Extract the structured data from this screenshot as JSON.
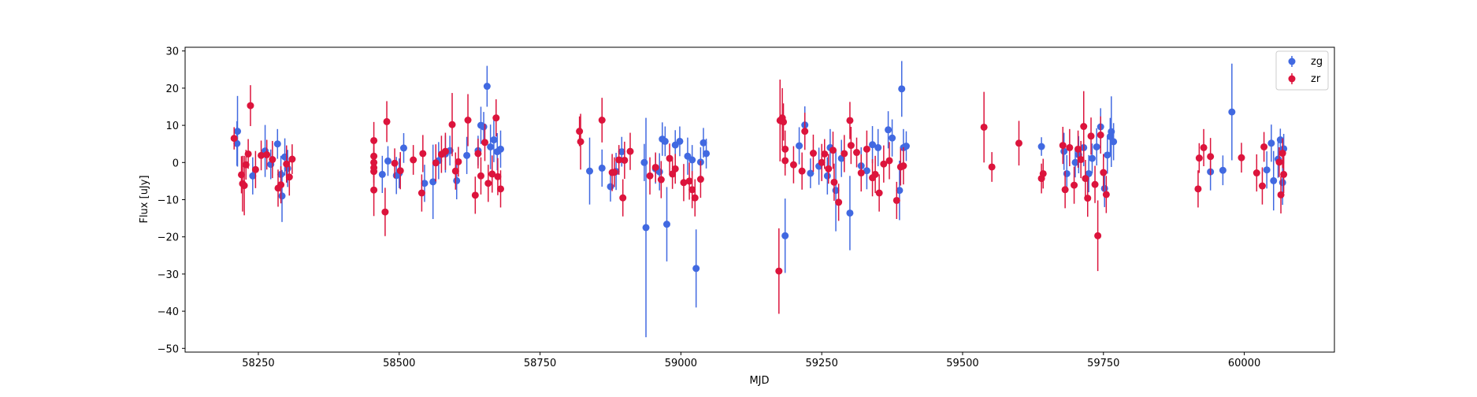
{
  "chart_data": {
    "type": "scatter",
    "xlabel": "MJD",
    "ylabel": "Flux [uJy]",
    "xlim": [
      58120,
      60160
    ],
    "ylim": [
      -51,
      31
    ],
    "xticks": [
      58250,
      58500,
      58750,
      59000,
      59250,
      59500,
      59750,
      60000
    ],
    "yticks": [
      -50,
      -40,
      -30,
      -20,
      -10,
      0,
      10,
      20,
      30
    ],
    "grid": false,
    "legend": "top-right",
    "markers": "circle with vertical error bars",
    "colors": {
      "zg": "#4169e1",
      "zr": "#dc143c"
    },
    "series": [
      {
        "name": "zg",
        "points": [
          [
            58213,
            8.4,
            9.5
          ],
          [
            58212,
            5.1,
            6
          ],
          [
            58240,
            -3.6,
            5
          ],
          [
            58262,
            3.1,
            7
          ],
          [
            58272,
            -0.5,
            4
          ],
          [
            58284,
            5.0,
            4
          ],
          [
            58290,
            -3.2,
            5
          ],
          [
            58292,
            -9.0,
            7
          ],
          [
            58297,
            1.5,
            5
          ],
          [
            58302,
            -1.6,
            5
          ],
          [
            58470,
            -3.2,
            5
          ],
          [
            58480,
            0.4,
            4
          ],
          [
            58495,
            -3.5,
            5
          ],
          [
            58500,
            -2.9,
            4
          ],
          [
            58508,
            3.9,
            4
          ],
          [
            58545,
            -5.6,
            5
          ],
          [
            58560,
            -5.2,
            10
          ],
          [
            58570,
            0.5,
            5
          ],
          [
            58582,
            2.3,
            5
          ],
          [
            58590,
            3.2,
            4
          ],
          [
            58602,
            -4.9,
            5
          ],
          [
            58620,
            1.9,
            5
          ],
          [
            58640,
            3.2,
            4
          ],
          [
            58645,
            10.0,
            5
          ],
          [
            58650,
            9.6,
            4
          ],
          [
            58656,
            20.5,
            5.5
          ],
          [
            58662,
            4.2,
            6
          ],
          [
            58668,
            6.1,
            6
          ],
          [
            58674,
            2.9,
            5
          ],
          [
            58680,
            3.6,
            5
          ],
          [
            58838,
            -2.3,
            9
          ],
          [
            58860,
            -1.5,
            5
          ],
          [
            58875,
            -6.5,
            4
          ],
          [
            58885,
            -2.4,
            5
          ],
          [
            58895,
            2.9,
            4
          ],
          [
            58935,
            0.0,
            5
          ],
          [
            58938,
            -17.5,
            29.5
          ],
          [
            58955,
            -1.7,
            4
          ],
          [
            58962,
            -2.5,
            5
          ],
          [
            58967,
            6.3,
            4.5
          ],
          [
            58972,
            5.7,
            4
          ],
          [
            58975,
            -16.6,
            10
          ],
          [
            58990,
            4.7,
            4
          ],
          [
            58998,
            5.7,
            4
          ],
          [
            59012,
            1.7,
            5
          ],
          [
            59020,
            0.7,
            4
          ],
          [
            59027,
            -28.5,
            10.5
          ],
          [
            59035,
            0.1,
            4
          ],
          [
            59040,
            5.3,
            4
          ],
          [
            59045,
            2.4,
            4
          ],
          [
            59185,
            -19.7,
            10
          ],
          [
            59210,
            4.5,
            5
          ],
          [
            59220,
            10.1,
            5
          ],
          [
            59230,
            -2.9,
            4
          ],
          [
            59245,
            -1.0,
            5
          ],
          [
            59260,
            -3.6,
            5
          ],
          [
            59265,
            4.0,
            5
          ],
          [
            59275,
            -7.5,
            11
          ],
          [
            59285,
            1.1,
            5
          ],
          [
            59300,
            -13.6,
            10
          ],
          [
            59320,
            -0.9,
            5
          ],
          [
            59330,
            -2.2,
            5
          ],
          [
            59340,
            4.8,
            5
          ],
          [
            59350,
            4.0,
            5
          ],
          [
            59368,
            8.8,
            5
          ],
          [
            59375,
            6.6,
            5
          ],
          [
            59388,
            -7.5,
            8
          ],
          [
            59392,
            19.8,
            7.5
          ],
          [
            59395,
            4.0,
            5
          ],
          [
            59400,
            4.4,
            4
          ],
          [
            59640,
            4.3,
            2.5
          ],
          [
            59680,
            3.0,
            5
          ],
          [
            59685,
            -3.0,
            5
          ],
          [
            59700,
            0.0,
            4
          ],
          [
            59706,
            2.1,
            5
          ],
          [
            59715,
            4.0,
            5
          ],
          [
            59724,
            -3.0,
            5
          ],
          [
            59730,
            1.1,
            4
          ],
          [
            59738,
            4.2,
            5
          ],
          [
            59745,
            9.6,
            5
          ],
          [
            59752,
            -7.0,
            5
          ],
          [
            59757,
            2.0,
            5
          ],
          [
            59762,
            7.0,
            5
          ],
          [
            59764,
            8.3,
            9.5
          ],
          [
            59768,
            5.6,
            5
          ],
          [
            59940,
            -2.5,
            5
          ],
          [
            59962,
            -2.1,
            4
          ],
          [
            59978,
            13.6,
            13
          ],
          [
            60040,
            -2.0,
            5
          ],
          [
            60048,
            5.2,
            5
          ],
          [
            60052,
            -4.9,
            8
          ],
          [
            60060,
            0.9,
            5
          ],
          [
            60064,
            6.1,
            3
          ],
          [
            60068,
            -5.4,
            6
          ],
          [
            60070,
            3.7,
            4
          ]
        ]
      },
      {
        "name": "zr",
        "points": [
          [
            58207,
            6.5,
            3
          ],
          [
            58220,
            -3.3,
            5
          ],
          [
            58222,
            -5.7,
            7.5
          ],
          [
            58225,
            -6.2,
            8
          ],
          [
            58228,
            -0.6,
            4
          ],
          [
            58232,
            2.3,
            4
          ],
          [
            58236,
            15.3,
            5.5
          ],
          [
            58245,
            -1.9,
            5
          ],
          [
            58255,
            1.9,
            4
          ],
          [
            58265,
            2.1,
            4
          ],
          [
            58275,
            0.8,
            5
          ],
          [
            58285,
            -6.9,
            5
          ],
          [
            58290,
            -6.0,
            5
          ],
          [
            58300,
            -0.4,
            5
          ],
          [
            58305,
            -3.9,
            5
          ],
          [
            58310,
            0.9,
            4
          ],
          [
            58455,
            5.9,
            5
          ],
          [
            58455,
            1.7,
            4
          ],
          [
            58455,
            0.0,
            4
          ],
          [
            58455,
            -1.4,
            4
          ],
          [
            58455,
            -2.4,
            4
          ],
          [
            58455,
            -7.4,
            7
          ],
          [
            58475,
            -13.3,
            6.5
          ],
          [
            58478,
            11.0,
            5.5
          ],
          [
            58492,
            -0.2,
            4
          ],
          [
            58502,
            -2.2,
            5
          ],
          [
            58525,
            0.7,
            4
          ],
          [
            58540,
            -8.2,
            5
          ],
          [
            58542,
            2.4,
            5
          ],
          [
            58565,
            -0.1,
            5
          ],
          [
            58575,
            2.2,
            5
          ],
          [
            58582,
            3.0,
            5
          ],
          [
            58594,
            10.2,
            8.5
          ],
          [
            58600,
            -2.3,
            5
          ],
          [
            58605,
            0.2,
            4
          ],
          [
            58622,
            11.4,
            7
          ],
          [
            58635,
            -8.8,
            5
          ],
          [
            58640,
            2.4,
            4
          ],
          [
            58645,
            -3.6,
            5
          ],
          [
            58652,
            5.4,
            5
          ],
          [
            58658,
            -5.6,
            5
          ],
          [
            58665,
            -3.1,
            5
          ],
          [
            58672,
            12.0,
            5
          ],
          [
            58675,
            -3.8,
            5
          ],
          [
            58680,
            -7.1,
            5
          ],
          [
            58820,
            8.4,
            4
          ],
          [
            58822,
            5.6,
            7.5
          ],
          [
            58860,
            11.4,
            6
          ],
          [
            58878,
            -2.7,
            5
          ],
          [
            58882,
            -2.6,
            4
          ],
          [
            58890,
            0.7,
            4
          ],
          [
            58897,
            -9.5,
            5
          ],
          [
            58900,
            0.6,
            5
          ],
          [
            58910,
            3.0,
            5
          ],
          [
            58945,
            -3.6,
            5
          ],
          [
            58955,
            -1.3,
            4
          ],
          [
            58965,
            -4.6,
            5
          ],
          [
            58980,
            1.1,
            4
          ],
          [
            58985,
            -3.1,
            4
          ],
          [
            58990,
            -1.7,
            4
          ],
          [
            59005,
            -5.4,
            5
          ],
          [
            59015,
            -5.0,
            5
          ],
          [
            59020,
            -7.3,
            5
          ],
          [
            59025,
            -9.5,
            5
          ],
          [
            59035,
            -4.5,
            5
          ],
          [
            59174,
            -29.2,
            11.5
          ],
          [
            59176,
            11.3,
            11
          ],
          [
            59180,
            12.0,
            8
          ],
          [
            59182,
            10.9,
            5
          ],
          [
            59185,
            3.6,
            5
          ],
          [
            59185,
            0.5,
            4
          ],
          [
            59200,
            -0.6,
            5
          ],
          [
            59215,
            -2.3,
            5
          ],
          [
            59220,
            8.4,
            5
          ],
          [
            59235,
            2.5,
            5
          ],
          [
            59250,
            0.0,
            5
          ],
          [
            59255,
            2.3,
            4
          ],
          [
            59262,
            -1.7,
            4
          ],
          [
            59270,
            3.3,
            5
          ],
          [
            59272,
            -5.3,
            5
          ],
          [
            59280,
            -10.7,
            5
          ],
          [
            59290,
            2.4,
            5
          ],
          [
            59300,
            11.3,
            5
          ],
          [
            59302,
            4.6,
            5
          ],
          [
            59312,
            2.7,
            4
          ],
          [
            59320,
            -2.8,
            5
          ],
          [
            59330,
            3.6,
            5
          ],
          [
            59340,
            -4.1,
            5
          ],
          [
            59345,
            -3.2,
            5
          ],
          [
            59352,
            -8.2,
            5
          ],
          [
            59360,
            -0.4,
            5
          ],
          [
            59370,
            0.5,
            5
          ],
          [
            59383,
            -10.2,
            5
          ],
          [
            59390,
            -1.2,
            5
          ],
          [
            59395,
            -0.9,
            5
          ],
          [
            59538,
            9.5,
            9.5
          ],
          [
            59552,
            -1.2,
            4
          ],
          [
            59600,
            5.2,
            6
          ],
          [
            59640,
            -4.3,
            4
          ],
          [
            59643,
            -3.0,
            4
          ],
          [
            59678,
            4.6,
            5
          ],
          [
            59682,
            -7.3,
            5
          ],
          [
            59690,
            4.0,
            5
          ],
          [
            59698,
            -6.1,
            5
          ],
          [
            59705,
            3.6,
            5
          ],
          [
            59710,
            0.8,
            5
          ],
          [
            59715,
            9.7,
            9.5
          ],
          [
            59718,
            -4.3,
            5
          ],
          [
            59722,
            -9.6,
            5
          ],
          [
            59728,
            7.1,
            5
          ],
          [
            59735,
            -5.9,
            5
          ],
          [
            59740,
            -19.7,
            9.5
          ],
          [
            59745,
            7.4,
            5
          ],
          [
            59750,
            -2.7,
            5
          ],
          [
            59755,
            -8.6,
            5
          ],
          [
            59918,
            -7.1,
            5
          ],
          [
            59920,
            1.2,
            4
          ],
          [
            59928,
            4.0,
            5
          ],
          [
            59940,
            1.6,
            5
          ],
          [
            59995,
            1.3,
            4
          ],
          [
            60022,
            -2.8,
            5
          ],
          [
            60032,
            -6.3,
            5
          ],
          [
            60035,
            4.2,
            4
          ],
          [
            60062,
            0.1,
            4
          ],
          [
            60065,
            -8.7,
            5
          ],
          [
            60068,
            2.5,
            4
          ],
          [
            60070,
            -3.2,
            5
          ]
        ]
      }
    ]
  }
}
